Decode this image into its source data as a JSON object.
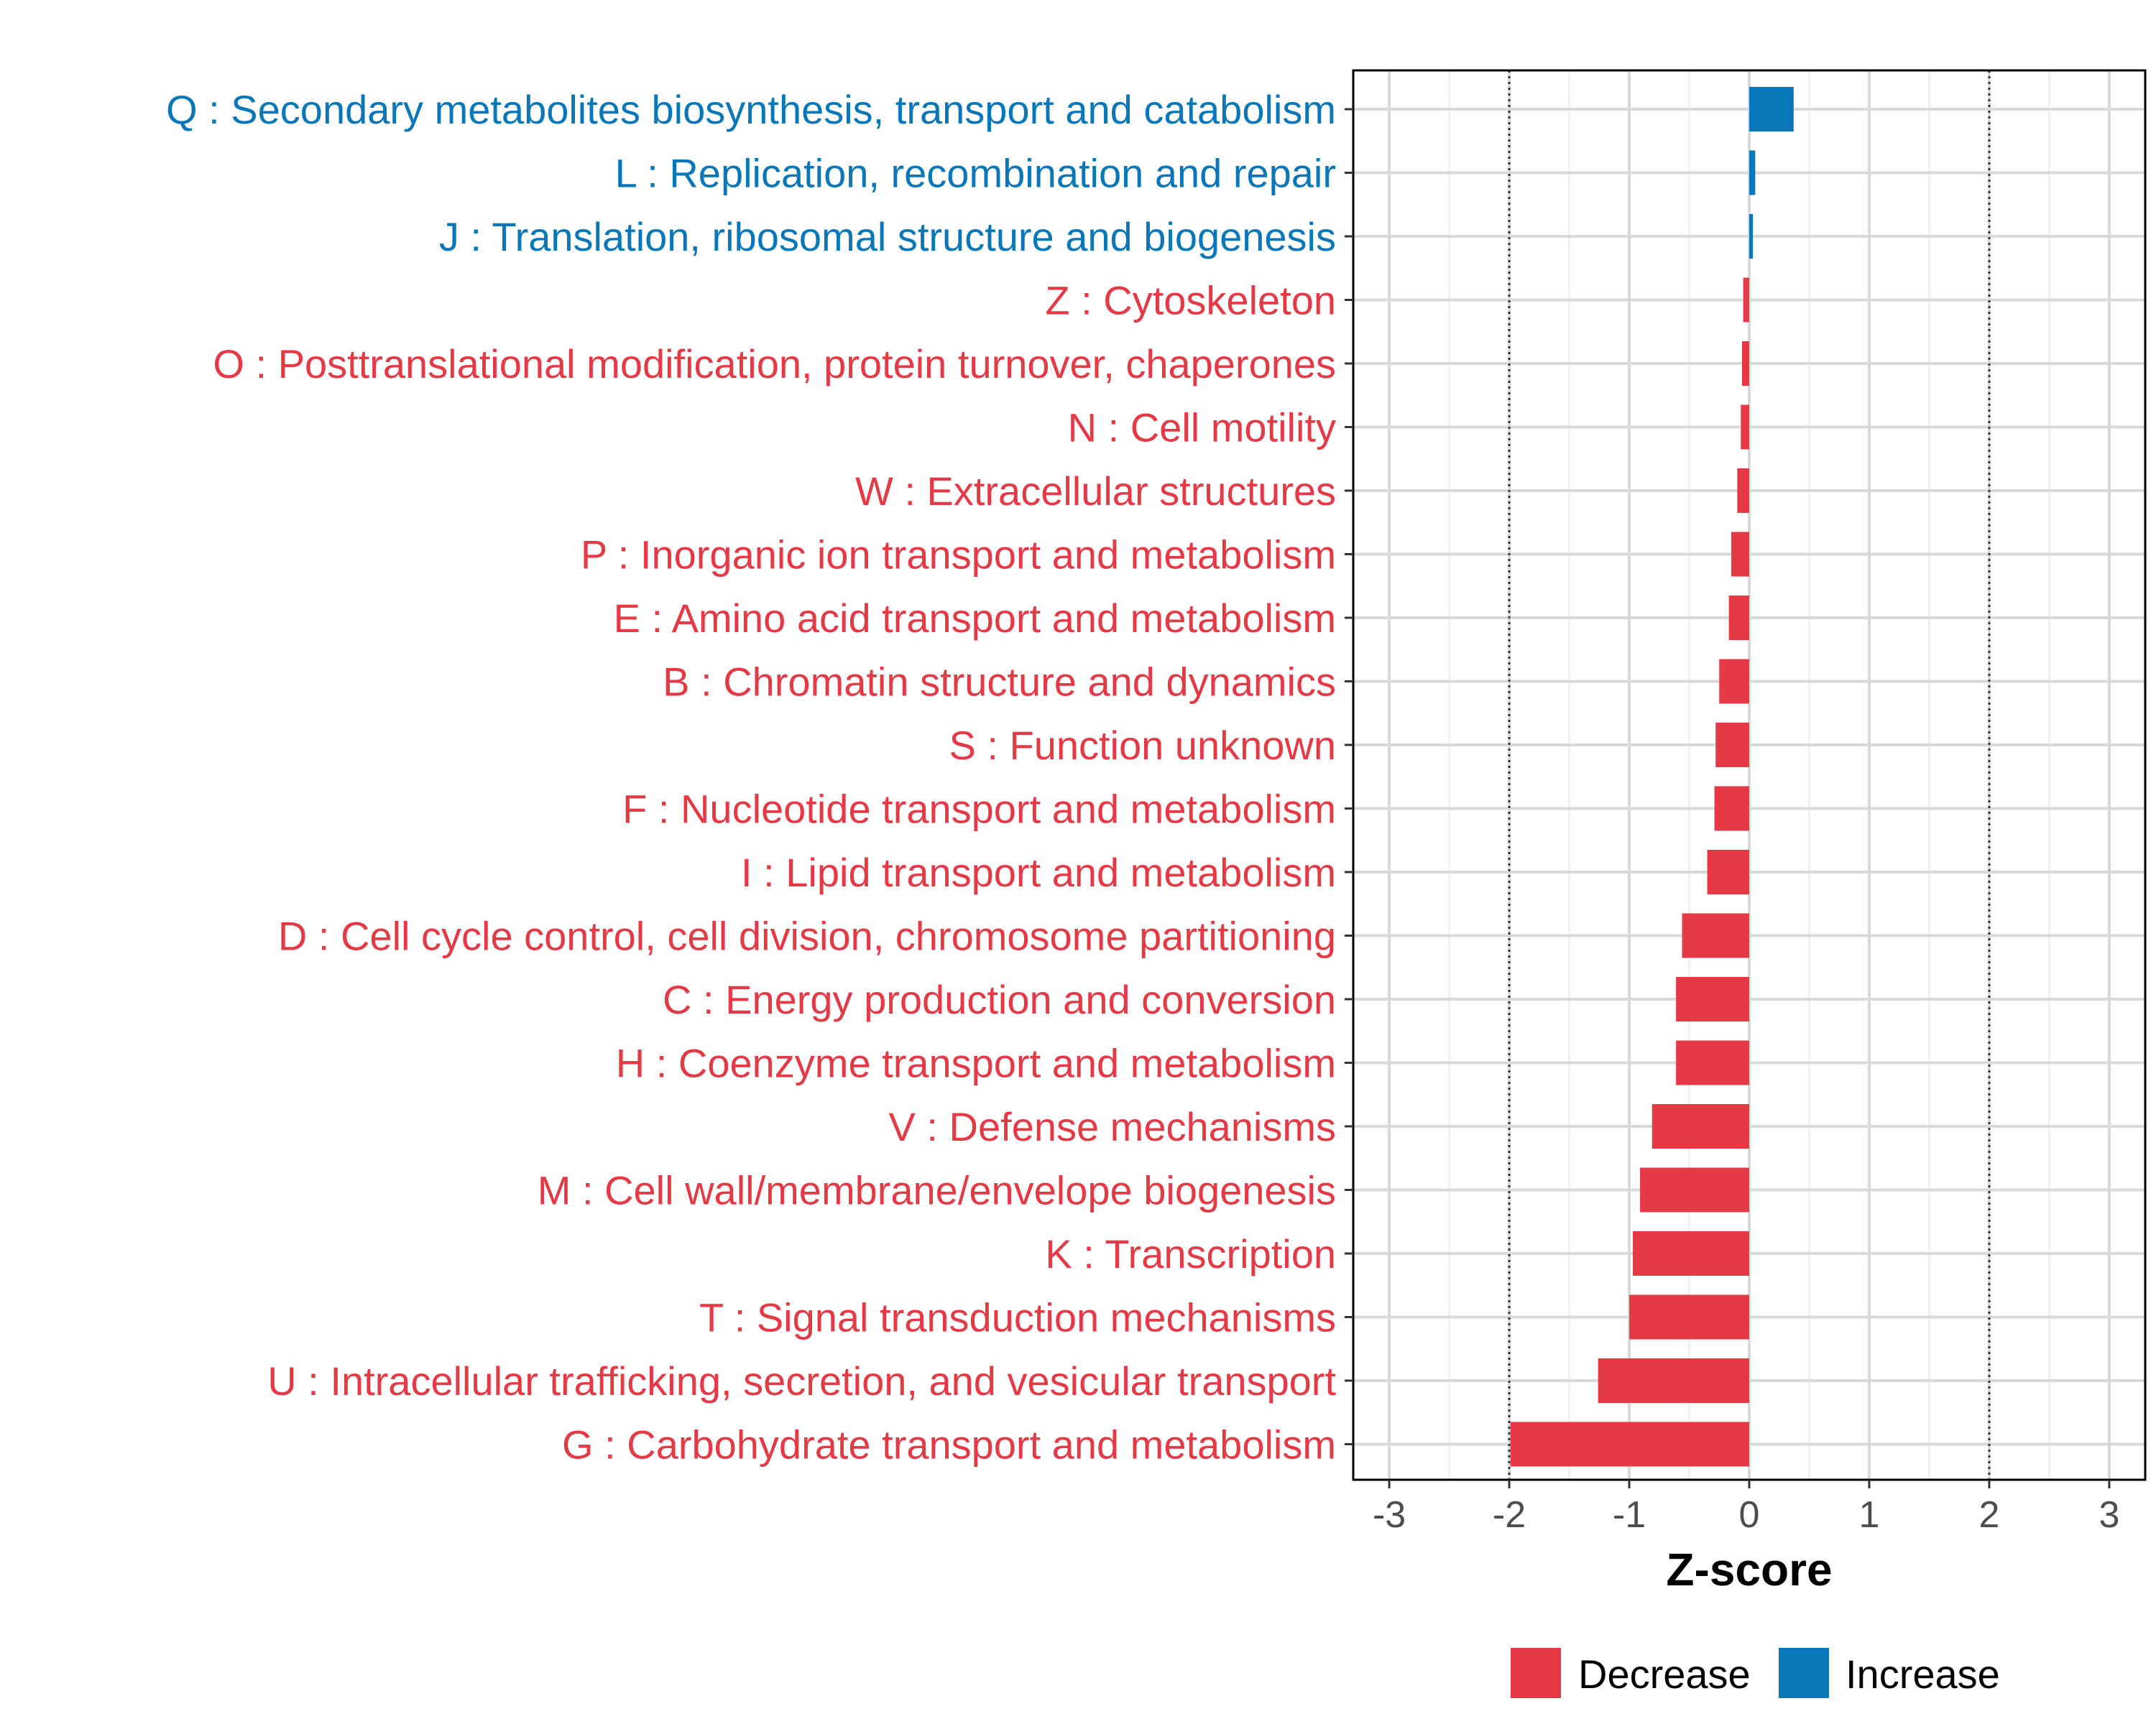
{
  "chart_data": {
    "type": "bar",
    "orientation": "horizontal",
    "xlabel": "Z-score",
    "xlim": [
      -3.3,
      3.3
    ],
    "xticks": [
      -3,
      -2,
      -1,
      0,
      1,
      2,
      3
    ],
    "xtick_labels": [
      "-3",
      "-2",
      "-1",
      "0",
      "1",
      "2",
      "3"
    ],
    "reference_lines": [
      -2,
      2
    ],
    "grid": true,
    "categories": [
      "Q : Secondary metabolites biosynthesis, transport and catabolism",
      "L : Replication, recombination and repair",
      "J : Translation, ribosomal structure and biogenesis",
      "Z : Cytoskeleton",
      "O : Posttranslational modification, protein turnover, chaperones",
      "N : Cell motility",
      "W : Extracellular structures",
      "P : Inorganic ion transport and metabolism",
      "E : Amino acid transport and metabolism",
      "B : Chromatin structure and dynamics",
      "S : Function unknown",
      "F : Nucleotide transport and metabolism",
      "I : Lipid transport and metabolism",
      "D : Cell cycle control, cell division, chromosome partitioning",
      "C : Energy production and conversion",
      "H : Coenzyme transport and metabolism",
      "V : Defense mechanisms",
      "M : Cell wall/membrane/envelope biogenesis",
      "K : Transcription",
      "T : Signal transduction mechanisms",
      "U : Intracellular trafficking, secretion, and vesicular transport",
      "G : Carbohydrate transport and metabolism"
    ],
    "values": [
      0.37,
      0.05,
      0.03,
      -0.05,
      -0.06,
      -0.07,
      -0.1,
      -0.15,
      -0.17,
      -0.25,
      -0.28,
      -0.29,
      -0.35,
      -0.56,
      -0.61,
      -0.61,
      -0.81,
      -0.91,
      -0.97,
      -1.0,
      -1.26,
      -1.99
    ],
    "legend": {
      "position": "bottom",
      "entries": [
        {
          "name": "Decrease",
          "color": "#E63946"
        },
        {
          "name": "Increase",
          "color": "#0A77B9"
        }
      ]
    }
  }
}
